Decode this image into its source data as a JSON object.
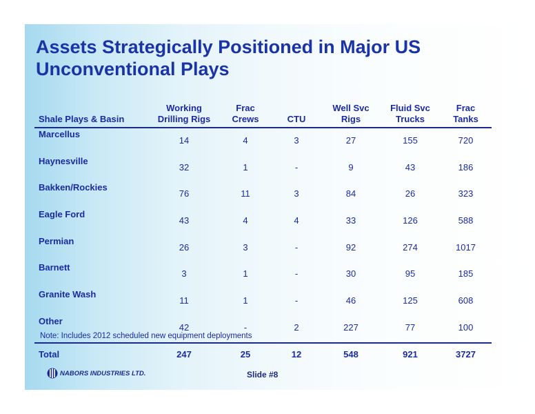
{
  "title": {
    "line1": "Assets Strategically Positioned in Major US",
    "line2": "Unconventional Plays"
  },
  "table": {
    "headers": [
      {
        "l1": "",
        "l2": "Shale Plays & Basin"
      },
      {
        "l1": "Working",
        "l2": "Drilling Rigs"
      },
      {
        "l1": "Frac",
        "l2": "Crews"
      },
      {
        "l1": "",
        "l2": "CTU"
      },
      {
        "l1": "Well Svc",
        "l2": "Rigs"
      },
      {
        "l1": "Fluid Svc",
        "l2": "Trucks"
      },
      {
        "l1": "Frac",
        "l2": "Tanks"
      }
    ],
    "rows": [
      [
        "Marcellus",
        "14",
        "4",
        "3",
        "27",
        "155",
        "720"
      ],
      [
        "Haynesville",
        "32",
        "1",
        "-",
        "9",
        "43",
        "186"
      ],
      [
        "Bakken/Rockies",
        "76",
        "11",
        "3",
        "84",
        "26",
        "323"
      ],
      [
        "Eagle Ford",
        "43",
        "4",
        "4",
        "33",
        "126",
        "588"
      ],
      [
        "Permian",
        "26",
        "3",
        "-",
        "92",
        "274",
        "1017"
      ],
      [
        "Barnett",
        "3",
        "1",
        "-",
        "30",
        "95",
        "185"
      ],
      [
        "Granite Wash",
        "11",
        "1",
        "-",
        "46",
        "125",
        "608"
      ],
      [
        "Other",
        "42",
        "-",
        "2",
        "227",
        "77",
        "100"
      ]
    ],
    "total": [
      "Total",
      "247",
      "25",
      "12",
      "548",
      "921",
      "3727"
    ]
  },
  "note": "Note:  Includes 2012 scheduled new equipment deployments",
  "footer": {
    "logo_text": "NABORS INDUSTRIES LTD.",
    "slide_label": "Slide #8"
  },
  "colors": {
    "text": "#1a2aa2",
    "title": "#1a33a6",
    "rule": "#1a2a8c"
  }
}
